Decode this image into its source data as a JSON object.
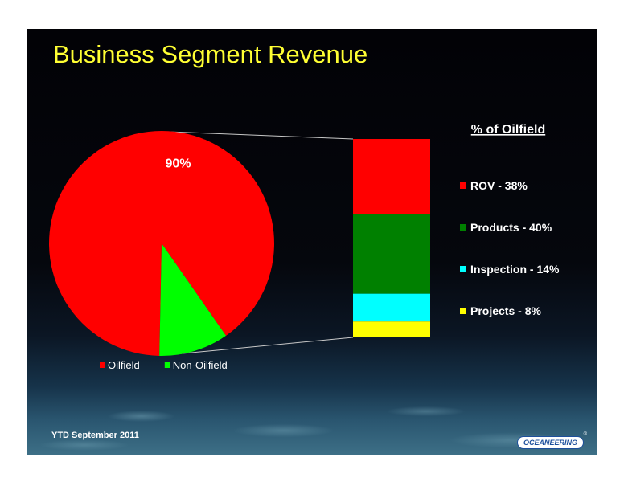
{
  "slide": {
    "title": "Business Segment Revenue",
    "footnote": "YTD September 2011",
    "logo_text": "OCEANEERING"
  },
  "chart_data": [
    {
      "type": "pie",
      "title": "",
      "slices": [
        {
          "label": "Oilfield",
          "value": 90,
          "color": "#ff0000",
          "data_label": "90%"
        },
        {
          "label": "Non-Oilfield",
          "value": 10,
          "color": "#00ff00",
          "data_label": ""
        }
      ],
      "legend": {
        "position": "bottom",
        "entries": [
          "Oilfield",
          "Non-Oilfield"
        ]
      }
    },
    {
      "type": "bar",
      "stacked": true,
      "title": "% of Oilfield",
      "segments": [
        {
          "label": "ROV - 38%",
          "value": 38,
          "color": "#ff0000"
        },
        {
          "label": "Products - 40%",
          "value": 40,
          "color": "#008000"
        },
        {
          "label": "Inspection - 14%",
          "value": 14,
          "color": "#00ffff"
        },
        {
          "label": "Projects - 8%",
          "value": 8,
          "color": "#ffff00"
        }
      ],
      "legend": {
        "position": "right"
      }
    }
  ]
}
